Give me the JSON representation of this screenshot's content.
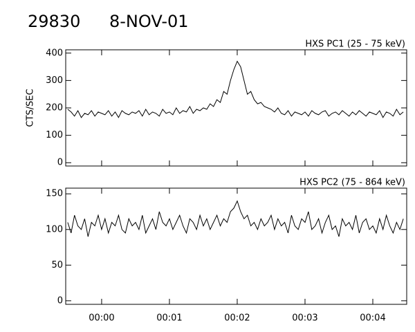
{
  "header": {
    "id": "29830",
    "date": "8-NOV-01"
  },
  "chart_data": [
    {
      "type": "line",
      "title": "HXS PC1 (25 - 75 keV)",
      "y_label": "CTS/SEC",
      "x": [
        -0.5,
        -0.45,
        -0.4,
        -0.35,
        -0.3,
        -0.25,
        -0.2,
        -0.15,
        -0.1,
        -0.05,
        0,
        0.05,
        0.1,
        0.15,
        0.2,
        0.25,
        0.3,
        0.35,
        0.4,
        0.45,
        0.5,
        0.55,
        0.6,
        0.65,
        0.7,
        0.75,
        0.8,
        0.85,
        0.9,
        0.95,
        1,
        1.05,
        1.1,
        1.15,
        1.2,
        1.25,
        1.3,
        1.35,
        1.4,
        1.45,
        1.5,
        1.55,
        1.6,
        1.65,
        1.7,
        1.75,
        1.8,
        1.85,
        1.9,
        1.95,
        2,
        2.05,
        2.1,
        2.15,
        2.2,
        2.25,
        2.3,
        2.35,
        2.4,
        2.45,
        2.5,
        2.55,
        2.6,
        2.65,
        2.7,
        2.75,
        2.8,
        2.85,
        2.9,
        2.95,
        3,
        3.05,
        3.1,
        3.15,
        3.2,
        3.25,
        3.3,
        3.35,
        3.4,
        3.45,
        3.5,
        3.55,
        3.6,
        3.65,
        3.7,
        3.75,
        3.8,
        3.85,
        3.9,
        3.95,
        4,
        4.05,
        4.1,
        4.15,
        4.2,
        4.25,
        4.3,
        4.35,
        4.4,
        4.45
      ],
      "series": [
        {
          "color": "#000000",
          "values": [
            195,
            185,
            170,
            190,
            165,
            180,
            175,
            190,
            170,
            185,
            180,
            175,
            190,
            170,
            185,
            165,
            190,
            180,
            175,
            185,
            180,
            190,
            170,
            195,
            175,
            185,
            180,
            170,
            195,
            180,
            185,
            175,
            200,
            180,
            190,
            185,
            205,
            180,
            195,
            190,
            200,
            195,
            215,
            205,
            230,
            220,
            260,
            250,
            300,
            340,
            370,
            350,
            300,
            250,
            260,
            230,
            215,
            220,
            205,
            200,
            195,
            185,
            200,
            180,
            175,
            190,
            170,
            185,
            180,
            175,
            185,
            170,
            190,
            180,
            175,
            185,
            190,
            170,
            180,
            185,
            175,
            190,
            180,
            170,
            185,
            175,
            190,
            180,
            170,
            185,
            180,
            175,
            190,
            165,
            185,
            180,
            170,
            195,
            175,
            185
          ]
        }
      ],
      "xlim": [
        -0.53,
        4.5
      ],
      "xticks": [
        0,
        1,
        2,
        3,
        4
      ],
      "ylim": [
        -12,
        412
      ],
      "yticks": [
        0,
        100,
        200,
        300,
        400
      ]
    },
    {
      "type": "line",
      "title": "HXS PC2 (75 - 864 keV)",
      "x": [
        -0.5,
        -0.45,
        -0.4,
        -0.35,
        -0.3,
        -0.25,
        -0.2,
        -0.15,
        -0.1,
        -0.05,
        0,
        0.05,
        0.1,
        0.15,
        0.2,
        0.25,
        0.3,
        0.35,
        0.4,
        0.45,
        0.5,
        0.55,
        0.6,
        0.65,
        0.7,
        0.75,
        0.8,
        0.85,
        0.9,
        0.95,
        1,
        1.05,
        1.1,
        1.15,
        1.2,
        1.25,
        1.3,
        1.35,
        1.4,
        1.45,
        1.5,
        1.55,
        1.6,
        1.65,
        1.7,
        1.75,
        1.8,
        1.85,
        1.9,
        1.95,
        2,
        2.05,
        2.1,
        2.15,
        2.2,
        2.25,
        2.3,
        2.35,
        2.4,
        2.45,
        2.5,
        2.55,
        2.6,
        2.65,
        2.7,
        2.75,
        2.8,
        2.85,
        2.9,
        2.95,
        3,
        3.05,
        3.1,
        3.15,
        3.2,
        3.25,
        3.3,
        3.35,
        3.4,
        3.45,
        3.5,
        3.55,
        3.6,
        3.65,
        3.7,
        3.75,
        3.8,
        3.85,
        3.9,
        3.95,
        4,
        4.05,
        4.1,
        4.15,
        4.2,
        4.25,
        4.3,
        4.35,
        4.4,
        4.45
      ],
      "series": [
        {
          "color": "#000000",
          "values": [
            110,
            95,
            120,
            105,
            100,
            115,
            90,
            110,
            105,
            120,
            100,
            115,
            95,
            110,
            105,
            120,
            100,
            95,
            115,
            105,
            110,
            100,
            120,
            95,
            105,
            115,
            100,
            125,
            110,
            105,
            115,
            100,
            110,
            120,
            105,
            95,
            115,
            110,
            100,
            120,
            105,
            115,
            100,
            110,
            120,
            105,
            115,
            110,
            125,
            130,
            140,
            125,
            115,
            120,
            105,
            110,
            100,
            115,
            105,
            110,
            120,
            100,
            115,
            105,
            110,
            95,
            120,
            105,
            100,
            115,
            110,
            125,
            100,
            105,
            115,
            95,
            110,
            120,
            100,
            105,
            90,
            115,
            105,
            110,
            100,
            120,
            95,
            110,
            115,
            100,
            105,
            95,
            115,
            100,
            120,
            105,
            95,
            110,
            100,
            115
          ]
        }
      ],
      "xlim": [
        -0.53,
        4.5
      ],
      "xticks": [
        {
          "value": 0,
          "label": "00:00"
        },
        {
          "value": 1,
          "label": "00:01"
        },
        {
          "value": 2,
          "label": "00:02"
        },
        {
          "value": 3,
          "label": "00:03"
        },
        {
          "value": 4,
          "label": "00:04"
        }
      ],
      "ylim": [
        -5,
        158
      ],
      "yticks": [
        0,
        50,
        100,
        150
      ]
    }
  ]
}
